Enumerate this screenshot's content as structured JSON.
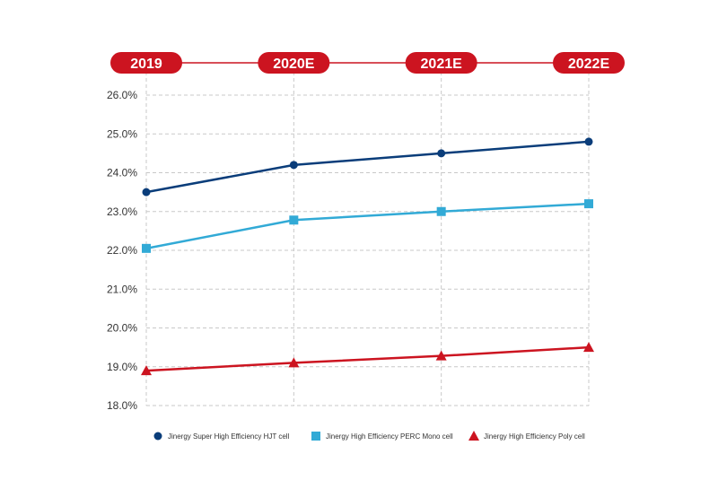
{
  "chart_data": {
    "type": "line",
    "categories": [
      "2019",
      "2020E",
      "2021E",
      "2022E"
    ],
    "ylim": [
      18.0,
      26.0
    ],
    "yticks": [
      "26.0%",
      "25.0%",
      "24.0%",
      "23.0%",
      "22.0%",
      "21.0%",
      "20.0%",
      "19.0%",
      "18.0%"
    ],
    "ytick_values": [
      26,
      25,
      24,
      23,
      22,
      21,
      20,
      19,
      18
    ],
    "grid": true,
    "legend_position": "bottom",
    "series": [
      {
        "name": "Jinergy Super High Efficiency HJT cell",
        "values": [
          23.5,
          24.2,
          24.5,
          24.8
        ],
        "color": "#0a3d7a",
        "marker": "circle"
      },
      {
        "name": "Jinergy High Efficiency PERC Mono cell",
        "values": [
          22.05,
          22.78,
          23.0,
          23.2
        ],
        "color": "#32aad6",
        "marker": "square"
      },
      {
        "name": "Jinergy High Efficiency Poly cell",
        "values": [
          18.9,
          19.1,
          19.28,
          19.5
        ],
        "color": "#cc1420",
        "marker": "triangle"
      }
    ]
  },
  "colors": {
    "pill": "#cc1420",
    "connector": "#cc1420",
    "grid": "#c8c8c8"
  }
}
